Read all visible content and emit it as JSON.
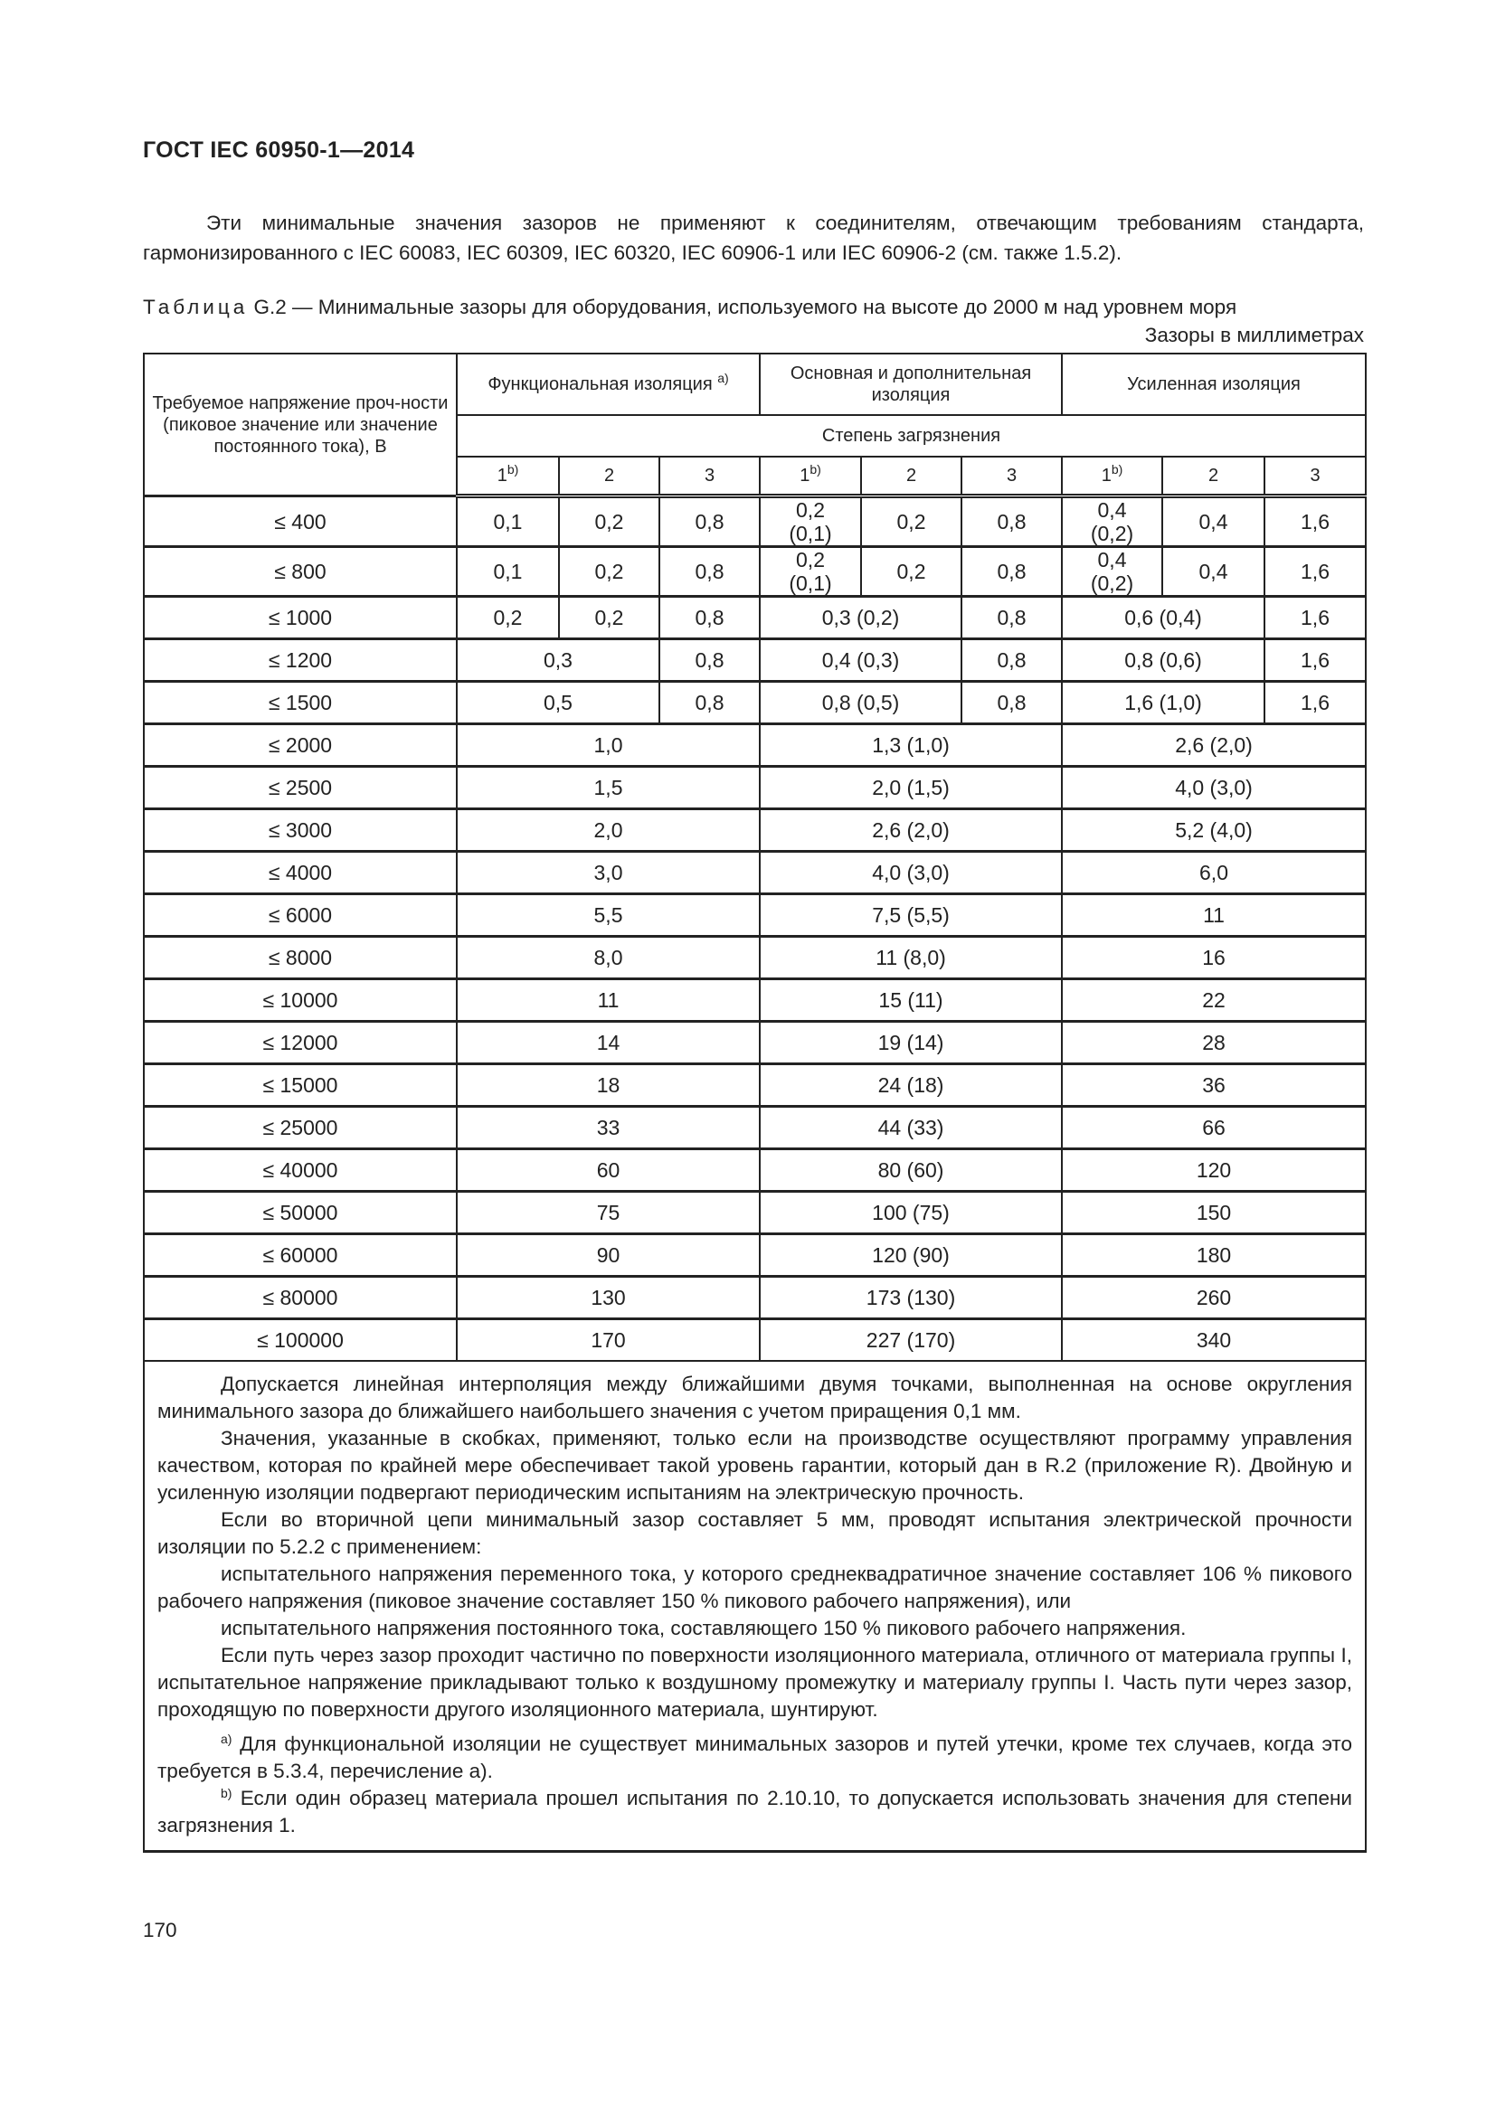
{
  "header": {
    "doc_id": "ГОСТ IEC 60950-1—2014"
  },
  "intro": "Эти минимальные значения зазоров не применяют к соединителям, отвечающим требованиям стандарта, гармонизированного с IEC 60083, IEC 60309, IEC 60320, IEC 60906-1 или IEC 60906-2 (см. также 1.5.2).",
  "caption": {
    "label": "Таблица",
    "title": "G.2 — Минимальные зазоры для оборудования, используемого на высоте до 2000 м над уровнем моря",
    "units": "Зазоры в миллиметрах"
  },
  "table": {
    "row_header": "Требуемое напряжение проч-ности (пиковое значение или значение постоянного тока), В",
    "groups": [
      {
        "label": "Функциональная изоляция",
        "sup": "a)"
      },
      {
        "label": "Основная и дополнительная изоляция",
        "sup": ""
      },
      {
        "label": "Усиленная изоляция",
        "sup": ""
      }
    ],
    "pollution_label": "Степень загрязнения",
    "pollution_degrees": [
      {
        "label": "1",
        "sup": "b)"
      },
      {
        "label": "2",
        "sup": ""
      },
      {
        "label": "3",
        "sup": ""
      },
      {
        "label": "1",
        "sup": "b)"
      },
      {
        "label": "2",
        "sup": ""
      },
      {
        "label": "3",
        "sup": ""
      },
      {
        "label": "1",
        "sup": "b)"
      },
      {
        "label": "2",
        "sup": ""
      },
      {
        "label": "3",
        "sup": ""
      }
    ],
    "rows": [
      {
        "voltage": "≤ 400",
        "cells": [
          [
            "0,1",
            1
          ],
          [
            "0,2",
            1
          ],
          [
            "0,8",
            1
          ],
          [
            "0,2\n(0,1)",
            1
          ],
          [
            "0,2",
            1
          ],
          [
            "0,8",
            1
          ],
          [
            "0,4\n(0,2)",
            1
          ],
          [
            "0,4",
            1
          ],
          [
            "1,6",
            1
          ]
        ]
      },
      {
        "voltage": "≤ 800",
        "cells": [
          [
            "0,1",
            1
          ],
          [
            "0,2",
            1
          ],
          [
            "0,8",
            1
          ],
          [
            "0,2\n(0,1)",
            1
          ],
          [
            "0,2",
            1
          ],
          [
            "0,8",
            1
          ],
          [
            "0,4\n(0,2)",
            1
          ],
          [
            "0,4",
            1
          ],
          [
            "1,6",
            1
          ]
        ]
      },
      {
        "voltage": "≤ 1000",
        "cells": [
          [
            "0,2",
            1
          ],
          [
            "0,2",
            1
          ],
          [
            "0,8",
            1
          ],
          [
            "0,3 (0,2)",
            2
          ],
          [
            "0,8",
            1
          ],
          [
            "0,6 (0,4)",
            2
          ],
          [
            "1,6",
            1
          ]
        ]
      },
      {
        "voltage": "≤ 1200",
        "cells": [
          [
            "0,3",
            2
          ],
          [
            "0,8",
            1
          ],
          [
            "0,4 (0,3)",
            2
          ],
          [
            "0,8",
            1
          ],
          [
            "0,8 (0,6)",
            2
          ],
          [
            "1,6",
            1
          ]
        ]
      },
      {
        "voltage": "≤ 1500",
        "cells": [
          [
            "0,5",
            2
          ],
          [
            "0,8",
            1
          ],
          [
            "0,8 (0,5)",
            2
          ],
          [
            "0,8",
            1
          ],
          [
            "1,6 (1,0)",
            2
          ],
          [
            "1,6",
            1
          ]
        ]
      },
      {
        "voltage": "≤ 2000",
        "cells": [
          [
            "1,0",
            3
          ],
          [
            "1,3 (1,0)",
            3
          ],
          [
            "2,6 (2,0)",
            3
          ]
        ]
      },
      {
        "voltage": "≤ 2500",
        "cells": [
          [
            "1,5",
            3
          ],
          [
            "2,0 (1,5)",
            3
          ],
          [
            "4,0 (3,0)",
            3
          ]
        ]
      },
      {
        "voltage": "≤ 3000",
        "cells": [
          [
            "2,0",
            3
          ],
          [
            "2,6 (2,0)",
            3
          ],
          [
            "5,2 (4,0)",
            3
          ]
        ]
      },
      {
        "voltage": "≤ 4000",
        "cells": [
          [
            "3,0",
            3
          ],
          [
            "4,0 (3,0)",
            3
          ],
          [
            "6,0",
            3
          ]
        ]
      },
      {
        "voltage": "≤ 6000",
        "cells": [
          [
            "5,5",
            3
          ],
          [
            "7,5 (5,5)",
            3
          ],
          [
            "11",
            3
          ]
        ]
      },
      {
        "voltage": "≤ 8000",
        "cells": [
          [
            "8,0",
            3
          ],
          [
            "11 (8,0)",
            3
          ],
          [
            "16",
            3
          ]
        ]
      },
      {
        "voltage": "≤ 10000",
        "cells": [
          [
            "11",
            3
          ],
          [
            "15 (11)",
            3
          ],
          [
            "22",
            3
          ]
        ]
      },
      {
        "voltage": "≤ 12000",
        "cells": [
          [
            "14",
            3
          ],
          [
            "19 (14)",
            3
          ],
          [
            "28",
            3
          ]
        ]
      },
      {
        "voltage": "≤ 15000",
        "cells": [
          [
            "18",
            3
          ],
          [
            "24 (18)",
            3
          ],
          [
            "36",
            3
          ]
        ]
      },
      {
        "voltage": "≤ 25000",
        "cells": [
          [
            "33",
            3
          ],
          [
            "44 (33)",
            3
          ],
          [
            "66",
            3
          ]
        ]
      },
      {
        "voltage": "≤ 40000",
        "cells": [
          [
            "60",
            3
          ],
          [
            "80 (60)",
            3
          ],
          [
            "120",
            3
          ]
        ]
      },
      {
        "voltage": "≤ 50000",
        "cells": [
          [
            "75",
            3
          ],
          [
            "100 (75)",
            3
          ],
          [
            "150",
            3
          ]
        ]
      },
      {
        "voltage": "≤ 60000",
        "cells": [
          [
            "90",
            3
          ],
          [
            "120 (90)",
            3
          ],
          [
            "180",
            3
          ]
        ]
      },
      {
        "voltage": "≤ 80000",
        "cells": [
          [
            "130",
            3
          ],
          [
            "173 (130)",
            3
          ],
          [
            "260",
            3
          ]
        ]
      },
      {
        "voltage": "≤ 100000",
        "cells": [
          [
            "170",
            3
          ],
          [
            "227 (170)",
            3
          ],
          [
            "340",
            3
          ]
        ]
      }
    ],
    "notes": [
      "Допускается линейная интерполяция между ближайшими двумя точками, выполненная на основе округления минимального зазора до ближайшего наибольшего значения с учетом приращения 0,1 мм.",
      "Значения, указанные в скобках, применяют, только если на производстве осуществляют программу управления качеством, которая по крайней мере обеспечивает такой уровень гарантии, который дан в R.2 (приложение R). Двойную и усиленную изоляции подвергают периодическим испытаниям на электрическую прочность.",
      "Если во вторичной цепи минимальный зазор составляет 5 мм, проводят испытания электрической прочности изоляции по 5.2.2 с применением:",
      "испытательного напряжения переменного тока, у которого среднеквадратичное значение составляет 106 % пикового рабочего напряжения (пиковое значение составляет 150 % пикового рабочего напряжения), или",
      "испытательного напряжения постоянного тока, составляющего 150 % пикового рабочего напряжения.",
      "Если путь через зазор проходит частично по поверхности изоляционного материала, отличного от материала группы I, испытательное напряжение прикладывают только к воздушному промежутку и материалу группы I. Часть пути через зазор, проходящую по поверхности другого изоляционного материала, шунтируют."
    ],
    "footnotes": [
      {
        "mark": "a)",
        "text": "Для функциональной изоляции не существует минимальных зазоров и путей утечки, кроме тех случаев, когда это требуется в 5.3.4, перечисление а)."
      },
      {
        "mark": "b)",
        "text": "Если один образец материала прошел испытания по 2.10.10, то допускается использовать значения для степени загрязнения 1."
      }
    ]
  },
  "page_number": "170"
}
